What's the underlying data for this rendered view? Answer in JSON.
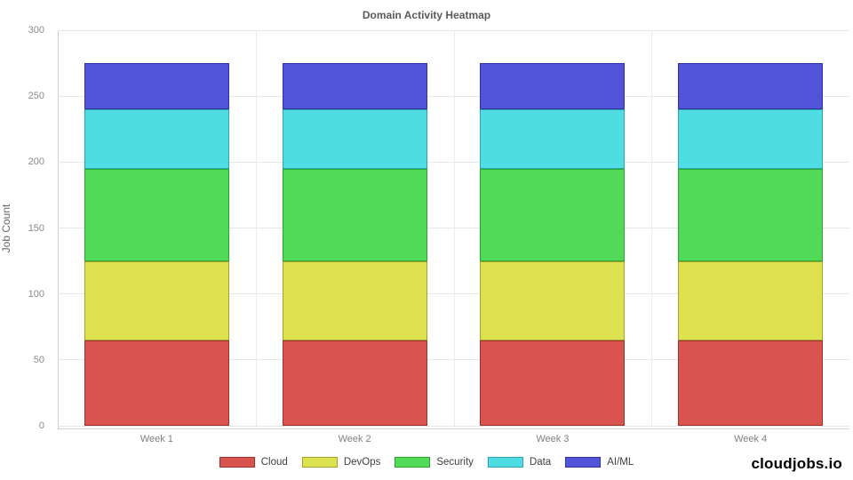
{
  "title": "Domain Activity Heatmap",
  "branding": "cloudjobs.io",
  "chart_data": {
    "type": "bar",
    "stacked": true,
    "title": "Domain Activity Heatmap",
    "xlabel": "",
    "ylabel": "Job Count",
    "categories": [
      "Week 1",
      "Week 2",
      "Week 3",
      "Week 4"
    ],
    "series": [
      {
        "name": "Cloud",
        "values": [
          65,
          65,
          65,
          65
        ],
        "color": "#d9534f",
        "border_color": "#9e302d"
      },
      {
        "name": "DevOps",
        "values": [
          60,
          60,
          60,
          60
        ],
        "color": "#dde04f",
        "border_color": "#a2a42c"
      },
      {
        "name": "Security",
        "values": [
          70,
          70,
          70,
          70
        ],
        "color": "#52d957",
        "border_color": "#2da531"
      },
      {
        "name": "Data",
        "values": [
          45,
          45,
          45,
          45
        ],
        "color": "#50dce3",
        "border_color": "#2aa8ae"
      },
      {
        "name": "AI/ML",
        "values": [
          35,
          35,
          35,
          35
        ],
        "color": "#5153d9",
        "border_color": "#2e30a5"
      }
    ],
    "ylim": [
      0,
      300
    ],
    "yticks": [
      0,
      50,
      100,
      150,
      200,
      250,
      300
    ],
    "grid": true,
    "legend_position": "bottom"
  }
}
